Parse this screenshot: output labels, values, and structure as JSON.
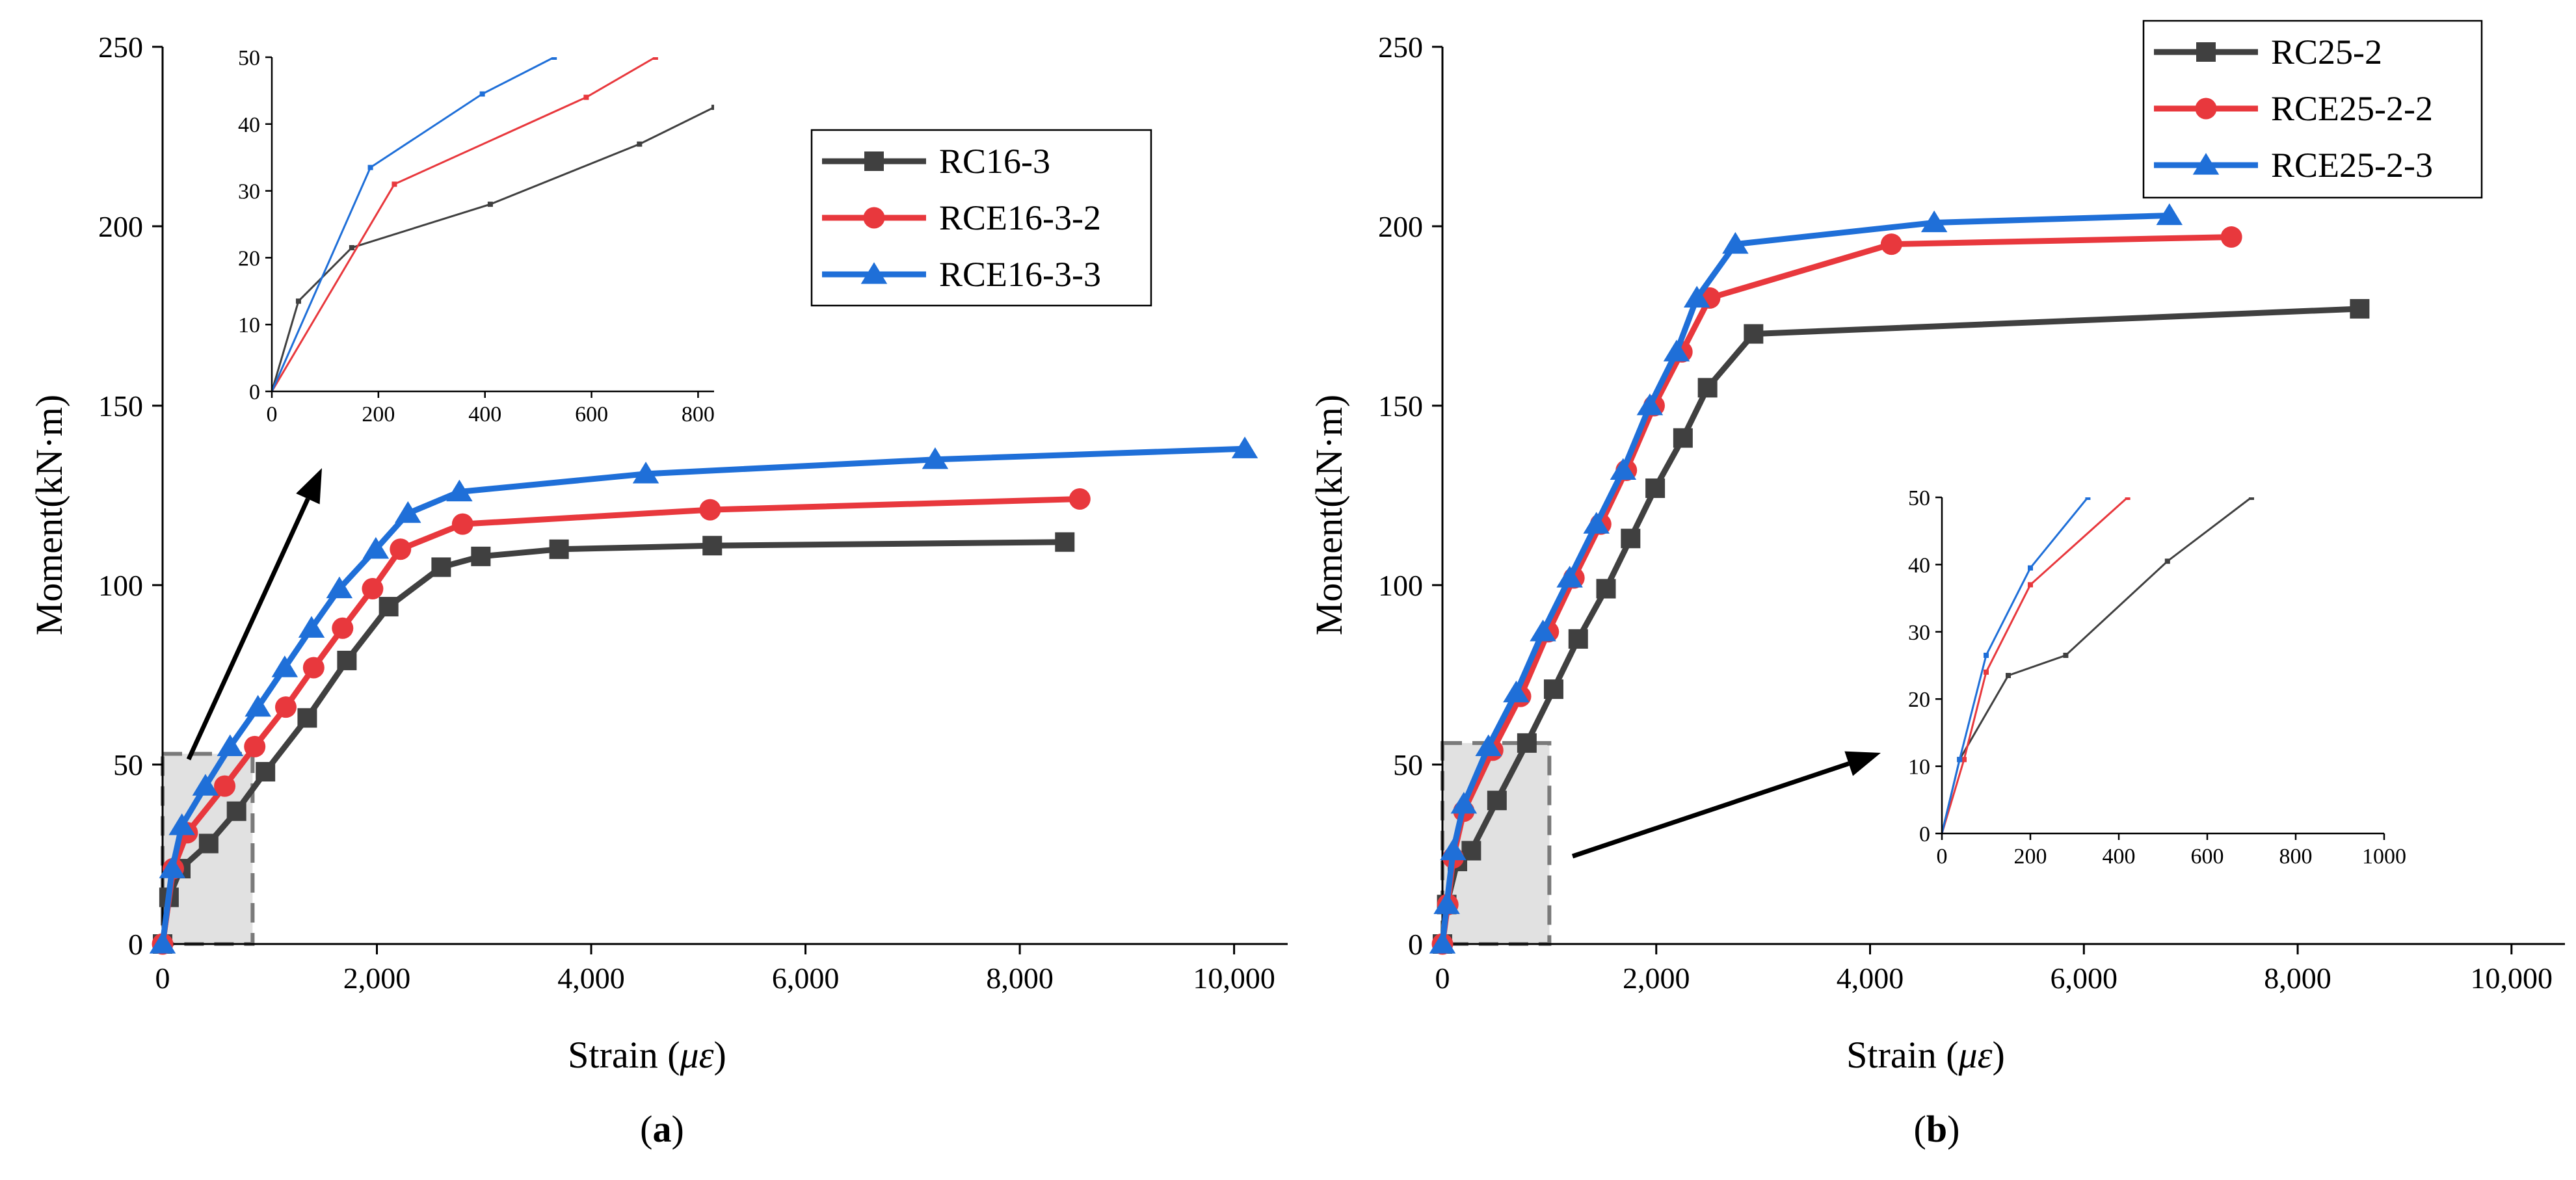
{
  "figure": {
    "panel_labels": [
      "a",
      "b"
    ],
    "colors": {
      "black": "#404040",
      "red": "#e8383d",
      "blue": "#1f6fd8",
      "shade": "#dcdcdc",
      "shade_border": "#7a7a7a",
      "arrow": "#000000"
    }
  },
  "chart_data": [
    {
      "type": "line",
      "panel": "a",
      "xlabel": "Strain",
      "xlabel_unit": "με",
      "ylabel": "Moment(kN·m)",
      "xlim": [
        0,
        10500
      ],
      "ylim": [
        0,
        250
      ],
      "xticks": [
        0,
        2000,
        4000,
        6000,
        8000,
        10000
      ],
      "xtick_labels": [
        "0",
        "2,000",
        "4,000",
        "6,000",
        "8,000",
        "10,000"
      ],
      "yticks": [
        0,
        50,
        100,
        150,
        200,
        250
      ],
      "ytick_labels": [
        "0",
        "50",
        "100",
        "150",
        "200",
        "250"
      ],
      "legend_position": "upper-center-right",
      "series": [
        {
          "name": "RC16-3",
          "color": "#404040",
          "marker": "square",
          "x": [
            0,
            60,
            170,
            430,
            690,
            960,
            1350,
            1720,
            2110,
            2600,
            2970,
            3700,
            5130,
            8420
          ],
          "y": [
            0,
            13,
            21,
            28,
            37,
            48,
            63,
            79,
            94,
            105,
            108,
            110,
            111,
            112
          ]
        },
        {
          "name": "RCE16-3-2",
          "color": "#e8383d",
          "marker": "circle",
          "x": [
            0,
            100,
            230,
            580,
            860,
            1150,
            1410,
            1680,
            1960,
            2220,
            2800,
            5110,
            8560
          ],
          "y": [
            0,
            21,
            31,
            44,
            55,
            66,
            77,
            88,
            99,
            110,
            117,
            121,
            124
          ]
        },
        {
          "name": "RCE16-3-3",
          "color": "#1f6fd8",
          "marker": "triangle",
          "x": [
            0,
            90,
            180,
            400,
            630,
            890,
            1140,
            1390,
            1650,
            1990,
            2290,
            2770,
            4510,
            7210,
            10100
          ],
          "y": [
            0,
            21,
            33,
            44,
            55,
            66,
            77,
            88,
            99,
            110,
            120,
            126,
            131,
            135,
            138
          ]
        }
      ],
      "shaded_region": {
        "x": [
          0,
          840
        ],
        "y": [
          0,
          53
        ]
      },
      "inset": {
        "xlim": [
          0,
          830
        ],
        "ylim": [
          0,
          50
        ],
        "xticks": [
          0,
          200,
          400,
          600,
          800
        ],
        "xtick_labels": [
          "0",
          "200",
          "400",
          "600",
          "800"
        ],
        "yticks": [
          0,
          10,
          20,
          30,
          40,
          50
        ],
        "ytick_labels": [
          "0",
          "10",
          "20",
          "30",
          "40",
          "50"
        ],
        "series": [
          {
            "name": "RC16-3",
            "color": "#404040",
            "x": [
              0,
              50,
              150,
              410,
              690,
              830
            ],
            "y": [
              0,
              13.5,
              21.5,
              28,
              37,
              42.5
            ]
          },
          {
            "name": "RCE16-3-2",
            "color": "#e8383d",
            "x": [
              0,
              230,
              590,
              720
            ],
            "y": [
              0,
              31,
              44,
              50
            ]
          },
          {
            "name": "RCE16-3-3",
            "color": "#1f6fd8",
            "x": [
              0,
              185,
              395,
              530
            ],
            "y": [
              0,
              33.5,
              44.5,
              50
            ]
          }
        ]
      }
    },
    {
      "type": "line",
      "panel": "b",
      "xlabel": "Strain",
      "xlabel_unit": "με",
      "ylabel": "Moment(kN·m)",
      "xlim": [
        0,
        10500
      ],
      "ylim": [
        0,
        250
      ],
      "xticks": [
        0,
        2000,
        4000,
        6000,
        8000,
        10000
      ],
      "xtick_labels": [
        "0",
        "2,000",
        "4,000",
        "6,000",
        "8,000",
        "10,000"
      ],
      "yticks": [
        0,
        50,
        100,
        150,
        200,
        250
      ],
      "ytick_labels": [
        "0",
        "50",
        "100",
        "150",
        "200",
        "250"
      ],
      "legend_position": "top-right",
      "series": [
        {
          "name": "RC25-2",
          "color": "#404040",
          "marker": "square",
          "x": [
            0,
            40,
            140,
            270,
            510,
            790,
            1040,
            1270,
            1530,
            1760,
            1990,
            2250,
            2480,
            2910,
            8580
          ],
          "y": [
            0,
            11,
            23,
            26,
            40,
            56,
            71,
            85,
            99,
            113,
            127,
            141,
            155,
            170,
            177
          ]
        },
        {
          "name": "RCE25-2-2",
          "color": "#e8383d",
          "marker": "circle",
          "x": [
            0,
            50,
            100,
            200,
            470,
            730,
            990,
            1230,
            1480,
            1720,
            1980,
            2240,
            2500,
            4200,
            7380
          ],
          "y": [
            0,
            11,
            24,
            37,
            54,
            69,
            87,
            102,
            117,
            132,
            150,
            165,
            180,
            195,
            197
          ]
        },
        {
          "name": "RCE25-2-3",
          "color": "#1f6fd8",
          "marker": "triangle",
          "x": [
            0,
            40,
            100,
            200,
            430,
            690,
            940,
            1190,
            1440,
            1690,
            1940,
            2190,
            2380,
            2740,
            4600,
            6800
          ],
          "y": [
            0,
            11,
            26,
            39,
            55,
            70,
            87,
            102,
            117,
            132,
            150,
            165,
            180,
            195,
            201,
            203
          ]
        }
      ],
      "shaded_region": {
        "x": [
          0,
          1000
        ],
        "y": [
          0,
          56
        ]
      },
      "inset": {
        "xlim": [
          0,
          1000
        ],
        "ylim": [
          0,
          50
        ],
        "xticks": [
          0,
          200,
          400,
          600,
          800,
          1000
        ],
        "xtick_labels": [
          "0",
          "200",
          "400",
          "600",
          "800",
          "1000"
        ],
        "yticks": [
          0,
          10,
          20,
          30,
          40,
          50
        ],
        "ytick_labels": [
          "0",
          "10",
          "20",
          "30",
          "40",
          "50"
        ],
        "series": [
          {
            "name": "RC25-2",
            "color": "#404040",
            "x": [
              0,
              40,
              150,
              280,
              510,
              700
            ],
            "y": [
              0,
              11,
              23.5,
              26.5,
              40.5,
              50
            ]
          },
          {
            "name": "RCE25-2-2",
            "color": "#e8383d",
            "x": [
              0,
              50,
              100,
              200,
              420
            ],
            "y": [
              0,
              11,
              24,
              37,
              50
            ]
          },
          {
            "name": "RCE25-2-3",
            "color": "#1f6fd8",
            "x": [
              0,
              40,
              100,
              200,
              330
            ],
            "y": [
              0,
              11,
              26.5,
              39.5,
              50
            ]
          }
        ]
      }
    }
  ]
}
